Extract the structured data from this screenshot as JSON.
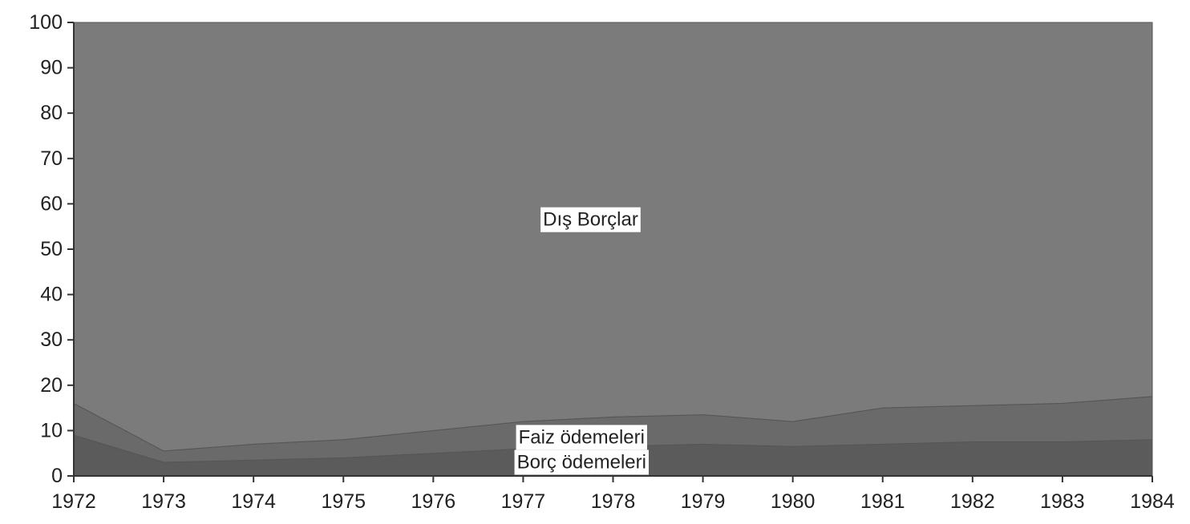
{
  "chart_data": {
    "type": "area",
    "stacked": true,
    "x": [
      1972,
      1973,
      1974,
      1975,
      1976,
      1977,
      1978,
      1979,
      1980,
      1981,
      1982,
      1983,
      1984
    ],
    "series": [
      {
        "name": "Borç ödemeleri",
        "values": [
          9,
          3,
          3.5,
          4,
          5,
          6,
          6.5,
          7,
          6.5,
          7,
          7.5,
          7.5,
          8
        ]
      },
      {
        "name": "Faiz ödemeleri",
        "values": [
          7,
          2.5,
          3.5,
          4,
          5,
          6,
          6.5,
          6.5,
          5.5,
          8,
          8,
          8.5,
          9.5
        ]
      },
      {
        "name": "Dış Borçlar",
        "values": [
          84,
          94.5,
          93,
          92,
          90,
          88,
          87,
          86.5,
          88,
          85,
          84.5,
          84,
          82.5
        ]
      }
    ],
    "ylim": [
      0,
      100
    ],
    "yticks": [
      0,
      10,
      20,
      30,
      40,
      50,
      60,
      70,
      80,
      90,
      100
    ],
    "xticks": [
      1972,
      1973,
      1974,
      1975,
      1976,
      1977,
      1978,
      1979,
      1980,
      1981,
      1982,
      1983,
      1984
    ],
    "title": "",
    "xlabel": "",
    "ylabel": "",
    "grid": false,
    "colors": {
      "Dış Borçlar": "#7b7b7b",
      "Faiz ödemeleri": "#6a6a6a",
      "Borç ödemeleri": "#5b5b5b"
    }
  }
}
